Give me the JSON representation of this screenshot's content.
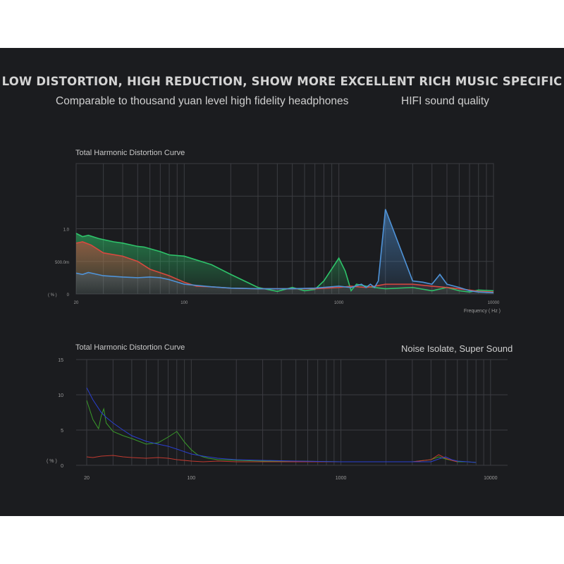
{
  "header": {
    "headline": "LOW DISTORTION, HIGH REDUCTION, SHOW MORE EXCELLENT RICH MUSIC SPECIFIC",
    "sub_left": "Comparable to thousand yuan level high fidelity headphones",
    "sub_right": "HIFI sound quality"
  },
  "chart_data": [
    {
      "type": "area",
      "title": "Total Harmonic Distortion Curve",
      "xlabel": "Frequency ( Hz )",
      "ylabel": "( % )",
      "x_scale": "log",
      "xlim": [
        20,
        10000
      ],
      "ylim": [
        0,
        2.0
      ],
      "x_ticks": [
        {
          "value": 20,
          "label": "20"
        },
        {
          "value": 100,
          "label": "100"
        },
        {
          "value": 1000,
          "label": "1000"
        },
        {
          "value": 10000,
          "label": "10000"
        }
      ],
      "y_ticks": [
        {
          "value": 0,
          "label": "0"
        },
        {
          "value": 0.5,
          "label": "500.0m"
        },
        {
          "value": 1.0,
          "label": "1.0"
        }
      ],
      "grid": true,
      "series": [
        {
          "color": "#2ec36a",
          "x": [
            20,
            22,
            24,
            28,
            35,
            40,
            50,
            55,
            70,
            80,
            100,
            150,
            200,
            300,
            400,
            500,
            600,
            700,
            800,
            1000,
            1100,
            1200,
            1300,
            1500,
            1700,
            2000,
            3000,
            4000,
            5000,
            6000,
            7000,
            8000,
            10000
          ],
          "values": [
            0.93,
            0.88,
            0.9,
            0.85,
            0.8,
            0.78,
            0.73,
            0.72,
            0.65,
            0.6,
            0.58,
            0.45,
            0.3,
            0.1,
            0.04,
            0.1,
            0.05,
            0.07,
            0.2,
            0.55,
            0.35,
            0.05,
            0.15,
            0.12,
            0.1,
            0.08,
            0.1,
            0.05,
            0.1,
            0.05,
            0.03,
            0.06,
            0.05
          ]
        },
        {
          "color": "#d8493f",
          "x": [
            20,
            22,
            25,
            30,
            40,
            50,
            60,
            80,
            100,
            120,
            150,
            200,
            300,
            400,
            500,
            700,
            1000,
            1200,
            1500,
            1700,
            2000,
            3000,
            4000,
            5000,
            6000,
            7000,
            8000,
            10000
          ],
          "values": [
            0.78,
            0.8,
            0.75,
            0.63,
            0.58,
            0.5,
            0.38,
            0.28,
            0.18,
            0.12,
            0.11,
            0.09,
            0.08,
            0.08,
            0.08,
            0.08,
            0.1,
            0.12,
            0.1,
            0.12,
            0.15,
            0.15,
            0.12,
            0.1,
            0.08,
            0.06,
            0.04,
            0.03
          ]
        },
        {
          "color": "#4f93d8",
          "x": [
            20,
            22,
            24,
            30,
            40,
            50,
            60,
            70,
            80,
            100,
            150,
            200,
            300,
            400,
            500,
            700,
            1000,
            1200,
            1400,
            1500,
            1600,
            1700,
            1800,
            2000,
            3000,
            3500,
            4000,
            4500,
            5000,
            6000,
            7000,
            8000,
            10000
          ],
          "values": [
            0.32,
            0.3,
            0.33,
            0.28,
            0.26,
            0.25,
            0.26,
            0.25,
            0.22,
            0.15,
            0.11,
            0.09,
            0.08,
            0.08,
            0.08,
            0.09,
            0.12,
            0.1,
            0.15,
            0.1,
            0.15,
            0.1,
            0.2,
            1.3,
            0.2,
            0.18,
            0.15,
            0.3,
            0.15,
            0.1,
            0.05,
            0.03,
            0.02
          ]
        }
      ]
    },
    {
      "type": "line",
      "title": "Total Harmonic Distortion Curve",
      "xlabel": "",
      "ylabel": "( % )",
      "x_scale": "log",
      "xlim": [
        17,
        13000
      ],
      "ylim": [
        0,
        15
      ],
      "x_ticks": [
        {
          "value": 20,
          "label": "20"
        },
        {
          "value": 100,
          "label": "100"
        },
        {
          "value": 1000,
          "label": "1000"
        },
        {
          "value": 10000,
          "label": "10000"
        }
      ],
      "y_ticks": [
        {
          "value": 0,
          "label": "0"
        },
        {
          "value": 5,
          "label": "5"
        },
        {
          "value": 10,
          "label": "10"
        },
        {
          "value": 15,
          "label": "15"
        }
      ],
      "grid": true,
      "series": [
        {
          "color": "#3a9a2a",
          "x": [
            20,
            22,
            24,
            25,
            26,
            27,
            30,
            35,
            40,
            50,
            60,
            70,
            80,
            90,
            100,
            110,
            120,
            130,
            150,
            200,
            300,
            500,
            1000,
            2000,
            3000,
            4000,
            4500,
            5000,
            5500,
            6000,
            7000,
            8000
          ],
          "values": [
            9.2,
            6.5,
            5.2,
            7.0,
            8.0,
            6.0,
            4.8,
            4.2,
            3.8,
            3.0,
            3.2,
            4.0,
            4.8,
            3.3,
            2.2,
            1.5,
            1.2,
            1.0,
            0.8,
            0.7,
            0.6,
            0.6,
            0.5,
            0.5,
            0.5,
            0.8,
            1.2,
            0.9,
            0.7,
            0.5,
            0.5,
            0.4
          ]
        },
        {
          "color": "#c23a30",
          "x": [
            20,
            22,
            25,
            30,
            35,
            40,
            50,
            60,
            70,
            80,
            100,
            120,
            150,
            200,
            300,
            1000,
            3000,
            4000,
            4500,
            5000,
            5500,
            6000
          ],
          "values": [
            1.2,
            1.1,
            1.3,
            1.4,
            1.2,
            1.1,
            1.0,
            1.1,
            1.0,
            0.8,
            0.6,
            0.5,
            0.6,
            0.5,
            0.5,
            0.5,
            0.5,
            0.8,
            1.5,
            1.0,
            0.7,
            0.5
          ]
        },
        {
          "color": "#2a3fd0",
          "x": [
            20,
            22,
            25,
            27,
            30,
            35,
            40,
            50,
            60,
            70,
            80,
            100,
            120,
            150,
            200,
            300,
            500,
            1000,
            2000,
            3000,
            4000,
            4500,
            5000,
            5500,
            6000,
            7000,
            8000
          ],
          "values": [
            11.0,
            9.3,
            7.5,
            6.8,
            6.0,
            5.0,
            4.2,
            3.4,
            3.0,
            2.7,
            2.3,
            1.6,
            1.3,
            1.0,
            0.8,
            0.7,
            0.6,
            0.5,
            0.5,
            0.5,
            0.5,
            0.9,
            1.2,
            0.8,
            0.6,
            0.5,
            0.4
          ]
        }
      ],
      "annotations": [
        "Noise Isolate, Super Sound"
      ]
    }
  ],
  "colors": {
    "background": "#1b1c1f",
    "grid": "#3b3c41",
    "text": "#cfcfcf"
  }
}
